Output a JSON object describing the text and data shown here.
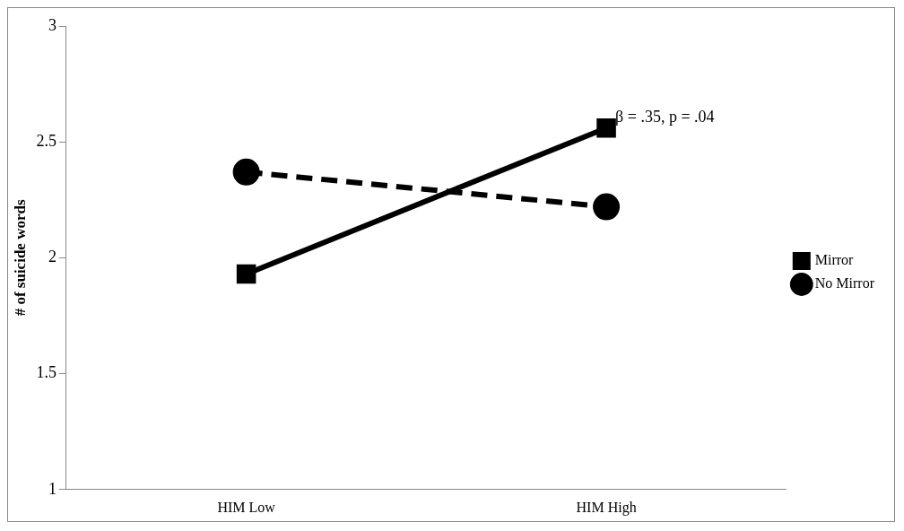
{
  "chart_data": {
    "type": "line",
    "ylabel": "# of suicide words",
    "categories": [
      "HIM Low",
      "HIM High"
    ],
    "series": [
      {
        "name": "Mirror",
        "color": "#000000",
        "values": [
          1.93,
          2.56
        ],
        "marker": "square",
        "line_style": "solid"
      },
      {
        "name": "No Mirror",
        "color": "#000000",
        "values": [
          2.37,
          2.22
        ],
        "marker": "circle",
        "line_style": "dashed"
      }
    ],
    "ylim": [
      1,
      3
    ],
    "yticks": [
      1,
      1.5,
      2,
      2.5,
      3
    ],
    "grid": false,
    "legend": "right",
    "annotations": [
      {
        "text": "β = .35, p = .04",
        "x": "HIM High",
        "y": 2.56
      }
    ]
  }
}
